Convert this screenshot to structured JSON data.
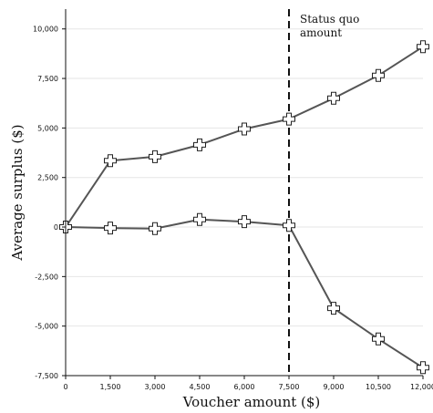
{
  "chart_data": {
    "type": "line",
    "x": [
      0,
      1500,
      3000,
      4500,
      6000,
      7500,
      9000,
      10500,
      12000
    ],
    "series": [
      {
        "values": [
          0,
          3350,
          3550,
          4150,
          4950,
          5450,
          6500,
          7650,
          9100
        ]
      },
      {
        "values": [
          0,
          -50,
          -80,
          380,
          270,
          80,
          -4100,
          -5650,
          -7100
        ]
      }
    ],
    "xlabel": "Voucher amount ($)",
    "ylabel": "Average surplus ($)",
    "xlim": [
      0,
      12000
    ],
    "ylim": [
      -7500,
      11000
    ],
    "x_ticks": [
      {
        "value": 0,
        "label": "0"
      },
      {
        "value": 1500,
        "label": "1,500"
      },
      {
        "value": 3000,
        "label": "3,000"
      },
      {
        "value": 4500,
        "label": "4,500"
      },
      {
        "value": 6000,
        "label": "6,000"
      },
      {
        "value": 7500,
        "label": "7,500"
      },
      {
        "value": 9000,
        "label": "9,000"
      },
      {
        "value": 10500,
        "label": "10,500"
      },
      {
        "value": 12000,
        "label": "12,000"
      }
    ],
    "y_ticks": [
      {
        "value": 10000,
        "label": "10,000"
      },
      {
        "value": 7500,
        "label": "7,500"
      },
      {
        "value": 5000,
        "label": "5,000"
      },
      {
        "value": 2500,
        "label": "2,500"
      },
      {
        "value": 0,
        "label": "0"
      },
      {
        "value": -2500,
        "label": "-2,500"
      },
      {
        "value": -5000,
        "label": "-5,000"
      },
      {
        "value": -7500,
        "label": "-7,500"
      }
    ],
    "reference_line": {
      "x": 7500,
      "label_lines": [
        "Status quo",
        "amount"
      ]
    },
    "grid": "horizontal",
    "legend": "none"
  }
}
